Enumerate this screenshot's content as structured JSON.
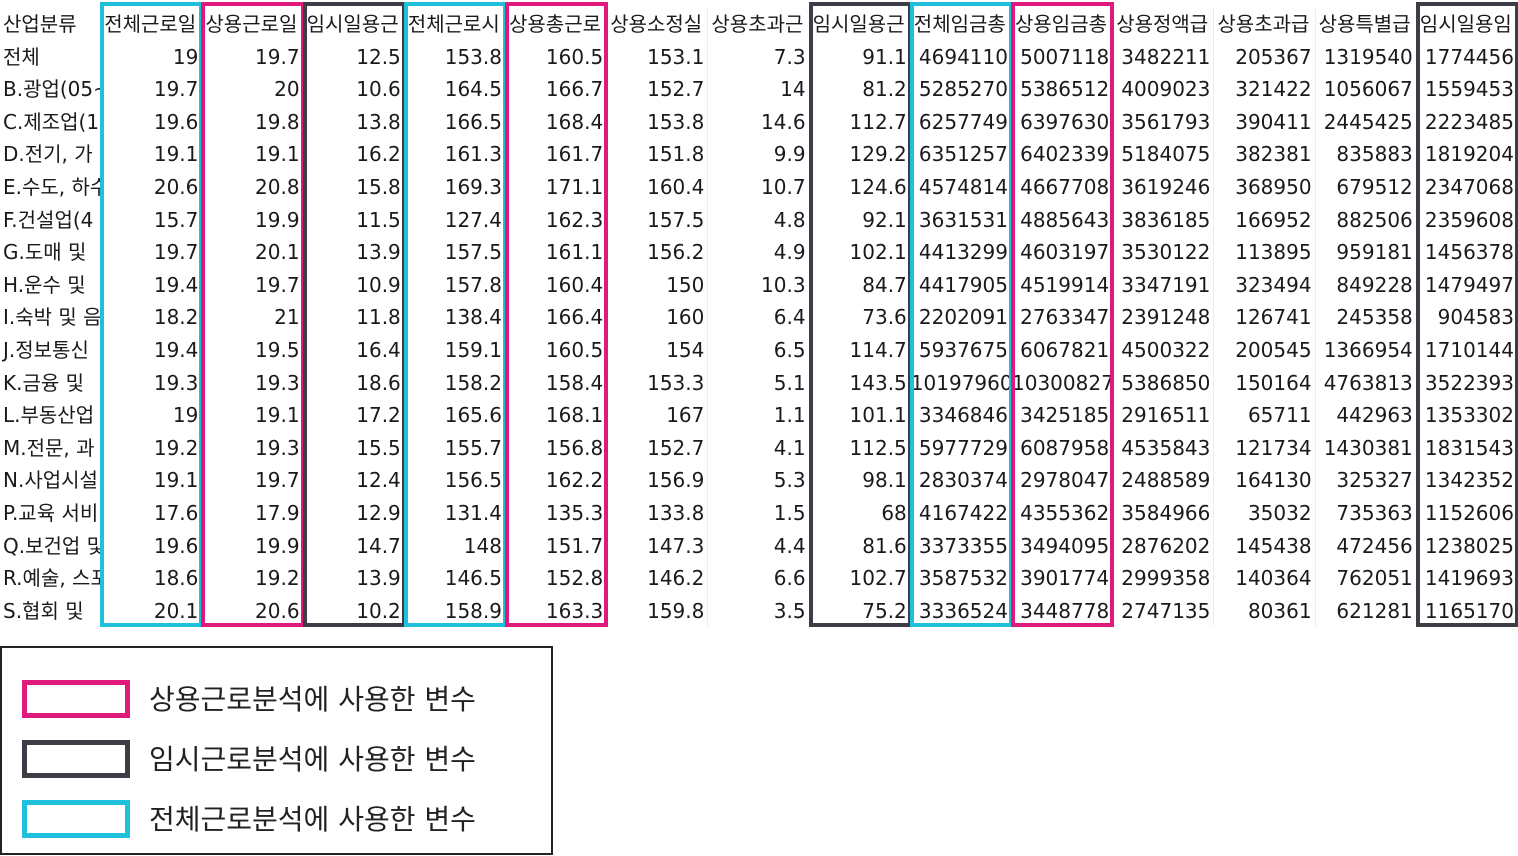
{
  "columns": [
    "산업분류",
    "전체근로일",
    "상용근로일",
    "임시일용근",
    "전체근로시",
    "상용총근로",
    "상용소정실",
    "상용초과근",
    "임시일용근",
    "전체임금총",
    "상용임금총",
    "상용정액급",
    "상용초과급",
    "상용특별급",
    "임시일용임"
  ],
  "rows": [
    [
      "전체",
      "19",
      "19.7",
      "12.5",
      "153.8",
      "160.5",
      "153.1",
      "7.3",
      "91.1",
      "4694110",
      "5007118",
      "3482211",
      "205367",
      "1319540",
      "1774456"
    ],
    [
      "B.광업(05~",
      "19.7",
      "20",
      "10.6",
      "164.5",
      "166.7",
      "152.7",
      "14",
      "81.2",
      "5285270",
      "5386512",
      "4009023",
      "321422",
      "1056067",
      "1559453"
    ],
    [
      "C.제조업(1",
      "19.6",
      "19.8",
      "13.8",
      "166.5",
      "168.4",
      "153.8",
      "14.6",
      "112.7",
      "6257749",
      "6397630",
      "3561793",
      "390411",
      "2445425",
      "2223485"
    ],
    [
      "D.전기, 가",
      "19.1",
      "19.1",
      "16.2",
      "161.3",
      "161.7",
      "151.8",
      "9.9",
      "129.2",
      "6351257",
      "6402339",
      "5184075",
      "382381",
      "835883",
      "1819204"
    ],
    [
      "E.수도, 하수",
      "20.6",
      "20.8",
      "15.8",
      "169.3",
      "171.1",
      "160.4",
      "10.7",
      "124.6",
      "4574814",
      "4667708",
      "3619246",
      "368950",
      "679512",
      "2347068"
    ],
    [
      "F.건설업(4",
      "15.7",
      "19.9",
      "11.5",
      "127.4",
      "162.3",
      "157.5",
      "4.8",
      "92.1",
      "3631531",
      "4885643",
      "3836185",
      "166952",
      "882506",
      "2359608"
    ],
    [
      "G.도매 및",
      "19.7",
      "20.1",
      "13.9",
      "157.5",
      "161.1",
      "156.2",
      "4.9",
      "102.1",
      "4413299",
      "4603197",
      "3530122",
      "113895",
      "959181",
      "1456378"
    ],
    [
      "H.운수 및",
      "19.4",
      "19.7",
      "10.9",
      "157.8",
      "160.4",
      "150",
      "10.3",
      "84.7",
      "4417905",
      "4519914",
      "3347191",
      "323494",
      "849228",
      "1479497"
    ],
    [
      "I.숙박 및 음",
      "18.2",
      "21",
      "11.8",
      "138.4",
      "166.4",
      "160",
      "6.4",
      "73.6",
      "2202091",
      "2763347",
      "2391248",
      "126741",
      "245358",
      "904583"
    ],
    [
      "J.정보통신",
      "19.4",
      "19.5",
      "16.4",
      "159.1",
      "160.5",
      "154",
      "6.5",
      "114.7",
      "5937675",
      "6067821",
      "4500322",
      "200545",
      "1366954",
      "1710144"
    ],
    [
      "K.금융 및",
      "19.3",
      "19.3",
      "18.6",
      "158.2",
      "158.4",
      "153.3",
      "5.1",
      "143.5",
      "10197960",
      "10300827",
      "5386850",
      "150164",
      "4763813",
      "3522393"
    ],
    [
      "L.부동산업",
      "19",
      "19.1",
      "17.2",
      "165.6",
      "168.1",
      "167",
      "1.1",
      "101.1",
      "3346846",
      "3425185",
      "2916511",
      "65711",
      "442963",
      "1353302"
    ],
    [
      "M.전문, 과",
      "19.2",
      "19.3",
      "15.5",
      "155.7",
      "156.8",
      "152.7",
      "4.1",
      "112.5",
      "5977729",
      "6087958",
      "4535843",
      "121734",
      "1430381",
      "1831543"
    ],
    [
      "N.사업시설",
      "19.1",
      "19.7",
      "12.4",
      "156.5",
      "162.2",
      "156.9",
      "5.3",
      "98.1",
      "2830374",
      "2978047",
      "2488589",
      "164130",
      "325327",
      "1342352"
    ],
    [
      "P.교육 서비",
      "17.6",
      "17.9",
      "12.9",
      "131.4",
      "135.3",
      "133.8",
      "1.5",
      "68",
      "4167422",
      "4355362",
      "3584966",
      "35032",
      "735363",
      "1152606"
    ],
    [
      "Q.보건업 및",
      "19.6",
      "19.9",
      "14.7",
      "148",
      "151.7",
      "147.3",
      "4.4",
      "81.6",
      "3373355",
      "3494095",
      "2876202",
      "145438",
      "472456",
      "1238025"
    ],
    [
      "R.예술, 스포",
      "18.6",
      "19.2",
      "13.9",
      "146.5",
      "152.8",
      "146.2",
      "6.6",
      "102.7",
      "3587532",
      "3901774",
      "2999358",
      "140364",
      "762051",
      "1419693"
    ],
    [
      "S.협회 및",
      "20.1",
      "20.6",
      "10.2",
      "158.9",
      "163.3",
      "159.8",
      "3.5",
      "75.2",
      "3336524",
      "3448778",
      "2747135",
      "80361",
      "621281",
      "1165170"
    ]
  ],
  "highlight_colors": {
    "regular": "#e0197d",
    "temporary": "#3d3d45",
    "total": "#1ec0dc"
  },
  "legend": {
    "regular_label": "상용근로분석에 사용한 변수",
    "temporary_label": "임시근로분석에 사용한 변수",
    "total_label": "전체근로분석에 사용한 변수"
  }
}
